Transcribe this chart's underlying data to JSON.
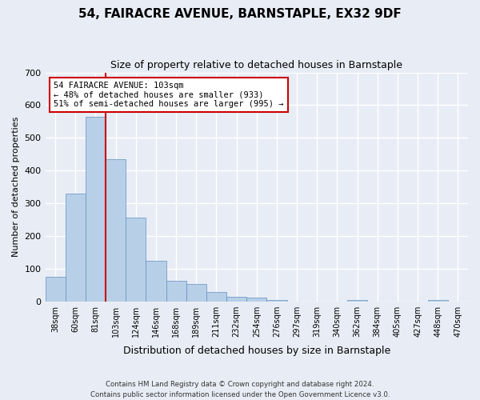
{
  "title": "54, FAIRACRE AVENUE, BARNSTAPLE, EX32 9DF",
  "subtitle": "Size of property relative to detached houses in Barnstaple",
  "xlabel": "Distribution of detached houses by size in Barnstaple",
  "ylabel": "Number of detached properties",
  "categories": [
    "38sqm",
    "60sqm",
    "81sqm",
    "103sqm",
    "124sqm",
    "146sqm",
    "168sqm",
    "189sqm",
    "211sqm",
    "232sqm",
    "254sqm",
    "276sqm",
    "297sqm",
    "319sqm",
    "340sqm",
    "362sqm",
    "384sqm",
    "405sqm",
    "427sqm",
    "448sqm",
    "470sqm"
  ],
  "values": [
    75,
    330,
    565,
    435,
    255,
    125,
    63,
    52,
    28,
    15,
    11,
    5,
    0,
    0,
    0,
    5,
    0,
    0,
    0,
    5,
    0
  ],
  "bar_color": "#b8cfe8",
  "bar_edge_color": "#6090c0",
  "red_line_x": 2.5,
  "annotation_line1": "54 FAIRACRE AVENUE: 103sqm",
  "annotation_line2": "← 48% of detached houses are smaller (933)",
  "annotation_line3": "51% of semi-detached houses are larger (995) →",
  "annotation_box_color": "#ffffff",
  "annotation_border_color": "#cc0000",
  "footer_text": "Contains HM Land Registry data © Crown copyright and database right 2024.\nContains public sector information licensed under the Open Government Licence v3.0.",
  "ylim": [
    0,
    700
  ],
  "yticks": [
    0,
    100,
    200,
    300,
    400,
    500,
    600,
    700
  ],
  "background_color": "#e8edf5",
  "plot_background_color": "#e8edf5",
  "grid_color": "#ffffff"
}
